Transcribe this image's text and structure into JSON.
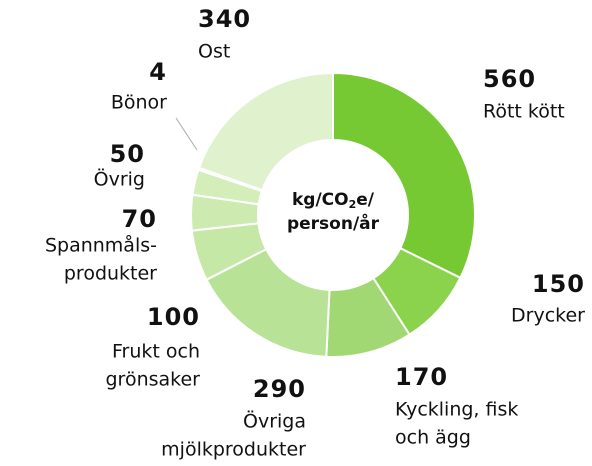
{
  "chart_data": {
    "type": "donut",
    "center_label": {
      "line1": {
        "pre": "kg/CO",
        "sub": "2",
        "post": "e/"
      },
      "line2": "person/år"
    },
    "categories": [
      [
        "Rött kött"
      ],
      [
        "Drycker"
      ],
      [
        "Kyckling, fisk",
        "och ägg"
      ],
      [
        "Övriga",
        "mjölkprodukter"
      ],
      [
        "Frukt och",
        "grönsaker"
      ],
      [
        "Spannmåls-",
        "produkter"
      ],
      [
        "Övrig"
      ],
      [
        "Bönor"
      ],
      [
        "Ost"
      ]
    ],
    "values": [
      560,
      150,
      170,
      290,
      100,
      70,
      50,
      4,
      340
    ],
    "colors": [
      "#76c932",
      "#8bd24d",
      "#a2d873",
      "#b8e296",
      "#c6e8a6",
      "#cdebb0",
      "#d4eeba",
      "#dcf1c8",
      "#dff2cd"
    ]
  }
}
